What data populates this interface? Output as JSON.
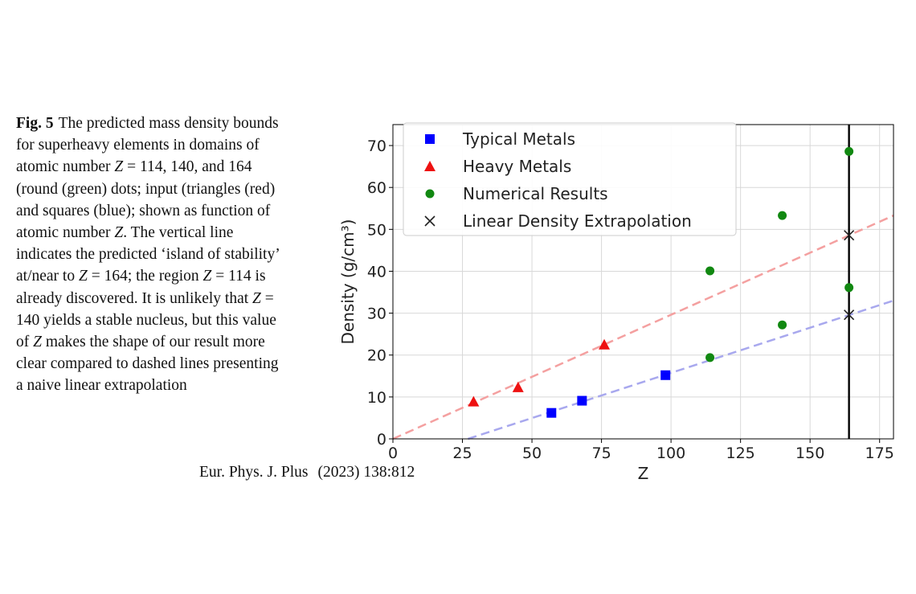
{
  "caption": {
    "label": "Fig. 5",
    "text_parts": [
      "The predicted mass density bounds for superheavy elements in domains of atomic number ",
      {
        "var": "Z"
      },
      " = 114, 140, and 164 (round (green) dots; input (triangles (red) and squares (blue); shown as function of atomic number ",
      {
        "var": "Z"
      },
      ". The vertical line indicates the predicted ‘island of stability’ at/near to ",
      {
        "var": "Z"
      },
      " = 164; the region ",
      {
        "var": "Z"
      },
      " = 114 is already discovered. It is unlikely that ",
      {
        "var": "Z"
      },
      " = 140 yields a stable nucleus, but this value of ",
      {
        "var": "Z"
      },
      " makes the shape of our result more clear compared to dashed lines presenting a naive linear extrapolation"
    ]
  },
  "footer": {
    "journal": "Eur. Phys. J. Plus",
    "citation": "(2023) 138:812"
  },
  "chart_data": {
    "type": "scatter",
    "xlabel": "Z",
    "ylabel": "Density (g/cm³)",
    "xlim": [
      0,
      180
    ],
    "ylim": [
      0,
      75
    ],
    "xticks": [
      0,
      25,
      50,
      75,
      100,
      125,
      150,
      175
    ],
    "yticks": [
      0,
      10,
      20,
      30,
      40,
      50,
      60,
      70
    ],
    "grid": true,
    "legend_position": "top-left",
    "series": [
      {
        "name": "Typical Metals",
        "marker": "square",
        "color": "#0000ff",
        "points": [
          [
            57,
            6.2
          ],
          [
            68,
            9.1
          ],
          [
            98,
            15.2
          ]
        ]
      },
      {
        "name": "Heavy Metals",
        "marker": "triangle",
        "color": "#ee1111",
        "points": [
          [
            29,
            8.9
          ],
          [
            45,
            12.3
          ],
          [
            76,
            22.5
          ]
        ]
      },
      {
        "name": "Numerical Results",
        "marker": "circle",
        "color": "#118811",
        "points": [
          [
            114,
            40.1
          ],
          [
            114,
            19.4
          ],
          [
            140,
            53.3
          ],
          [
            140,
            27.2
          ],
          [
            164,
            68.6
          ],
          [
            164,
            36.1
          ]
        ]
      },
      {
        "name": "Linear Density Extrapolation",
        "marker": "x",
        "color": "#222222",
        "points": [
          [
            164,
            48.6
          ],
          [
            164,
            29.6
          ]
        ]
      }
    ],
    "reference_lines": [
      {
        "kind": "dashed",
        "color": "#f4a0a0",
        "from": [
          0,
          0
        ],
        "to": [
          180,
          53.3
        ]
      },
      {
        "kind": "dashed",
        "color": "#a8a8ee",
        "from": [
          27,
          0
        ],
        "to": [
          180,
          33
        ]
      },
      {
        "kind": "vertical",
        "color": "#000000",
        "x": 164
      }
    ]
  }
}
